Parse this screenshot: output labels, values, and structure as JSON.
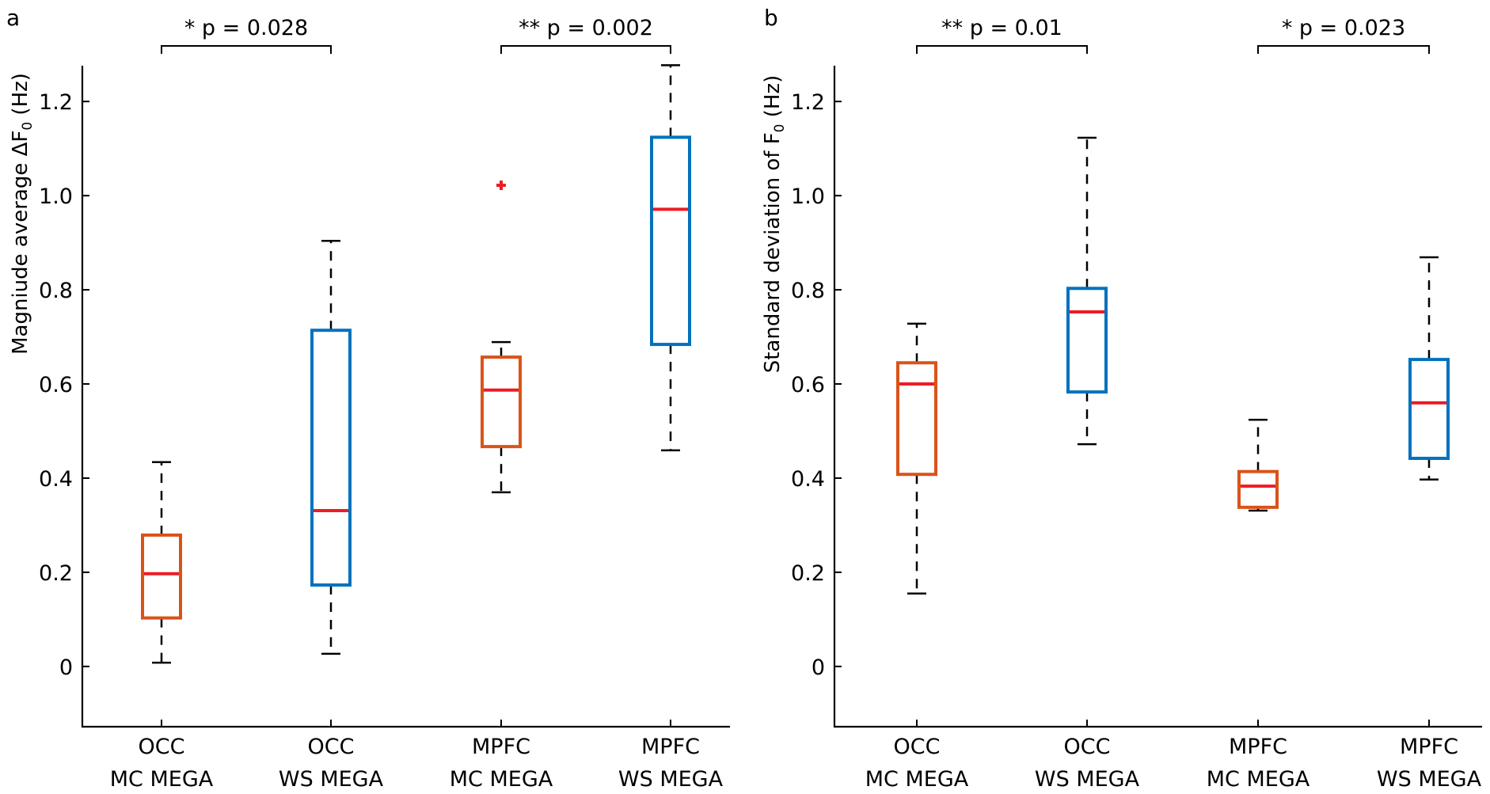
{
  "chart_data": [
    {
      "panel": "a",
      "type": "box",
      "ylabel_main": "Magniude average ΔF",
      "ylabel_sub": "0",
      "ylabel_unit": " (Hz)",
      "xlabel": "",
      "ylim": [
        -0.128,
        1.276
      ],
      "yticks": [
        0,
        0.2,
        0.4,
        0.6,
        0.8,
        1.0,
        1.2
      ],
      "ytick_labels": [
        "0",
        "0.2",
        "0.4",
        "0.6",
        "0.8",
        "1.0",
        "1.2"
      ],
      "grid": false,
      "categories": [
        {
          "line1": "OCC",
          "line2": "MC MEGA"
        },
        {
          "line1": "OCC",
          "line2": "WS MEGA"
        },
        {
          "line1": "MPFC",
          "line2": "MC MEGA"
        },
        {
          "line1": "MPFC",
          "line2": "WS MEGA"
        }
      ],
      "boxes": [
        {
          "group": "MC",
          "whisker_low": 0.008,
          "q1": 0.103,
          "median": 0.197,
          "q3": 0.279,
          "whisker_high": 0.434,
          "outliers": []
        },
        {
          "group": "WS",
          "whisker_low": 0.027,
          "q1": 0.173,
          "median": 0.331,
          "q3": 0.714,
          "whisker_high": 0.904,
          "outliers": []
        },
        {
          "group": "MC",
          "whisker_low": 0.37,
          "q1": 0.467,
          "median": 0.587,
          "q3": 0.657,
          "whisker_high": 0.689,
          "outliers": [
            1.022
          ]
        },
        {
          "group": "WS",
          "whisker_low": 0.459,
          "q1": 0.684,
          "median": 0.971,
          "q3": 1.124,
          "whisker_high": 1.277,
          "outliers": []
        }
      ],
      "significance": [
        {
          "from": 0,
          "to": 1,
          "label": "* p = 0.028"
        },
        {
          "from": 2,
          "to": 3,
          "label": "** p = 0.002"
        }
      ]
    },
    {
      "panel": "b",
      "type": "box",
      "ylabel_main": "Standard deviation of F",
      "ylabel_sub": "0",
      "ylabel_unit": " (Hz)",
      "xlabel": "",
      "ylim": [
        -0.128,
        1.276
      ],
      "yticks": [
        0,
        0.2,
        0.4,
        0.6,
        0.8,
        1.0,
        1.2
      ],
      "ytick_labels": [
        "0",
        "0.2",
        "0.4",
        "0.6",
        "0.8",
        "1.0",
        "1.2"
      ],
      "grid": false,
      "categories": [
        {
          "line1": "OCC",
          "line2": "MC MEGA"
        },
        {
          "line1": "OCC",
          "line2": "WS MEGA"
        },
        {
          "line1": "MPFC",
          "line2": "MC MEGA"
        },
        {
          "line1": "MPFC",
          "line2": "WS MEGA"
        }
      ],
      "boxes": [
        {
          "group": "MC",
          "whisker_low": 0.155,
          "q1": 0.408,
          "median": 0.6,
          "q3": 0.645,
          "whisker_high": 0.728,
          "outliers": []
        },
        {
          "group": "WS",
          "whisker_low": 0.472,
          "q1": 0.583,
          "median": 0.753,
          "q3": 0.803,
          "whisker_high": 1.123,
          "outliers": []
        },
        {
          "group": "MC",
          "whisker_low": 0.331,
          "q1": 0.338,
          "median": 0.383,
          "q3": 0.414,
          "whisker_high": 0.524,
          "outliers": []
        },
        {
          "group": "WS",
          "whisker_low": 0.397,
          "q1": 0.442,
          "median": 0.56,
          "q3": 0.652,
          "whisker_high": 0.869,
          "outliers": []
        }
      ],
      "significance": [
        {
          "from": 0,
          "to": 1,
          "label": "** p = 0.01"
        },
        {
          "from": 2,
          "to": 3,
          "label": "* p = 0.023"
        }
      ]
    }
  ],
  "colors": {
    "MC": "#D95319",
    "WS": "#0072BD",
    "median": "#ED1C24",
    "outlier": "#ED1C24",
    "axis": "#000000"
  }
}
